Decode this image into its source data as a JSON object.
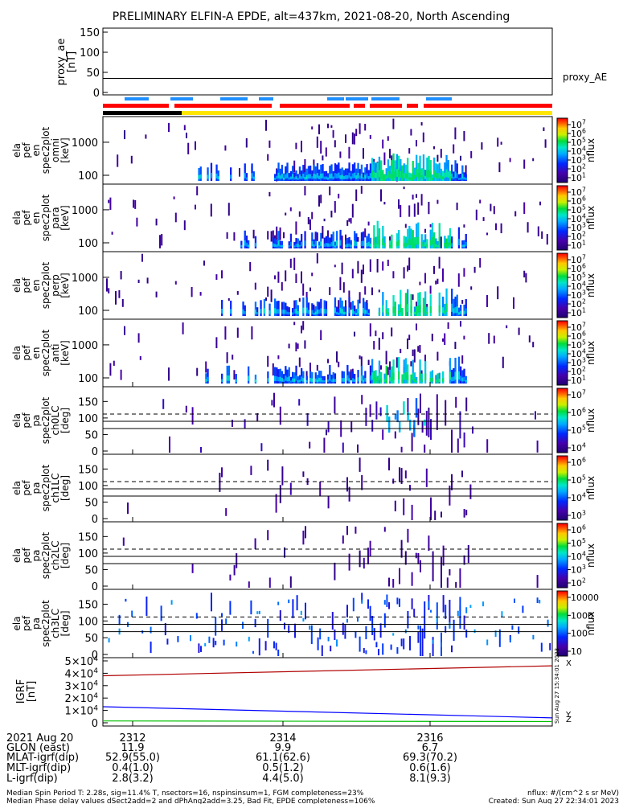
{
  "title": "PRELIMINARY ELFIN-A EPDE, alt=437km, 2021-08-20, North Ascending",
  "colors": {
    "red": "#ff0000",
    "yellow": "#ffe600",
    "black": "#000000",
    "blue_bar": "#1e90ff",
    "field_red": "#b00000",
    "field_blue": "#0000ff",
    "field_green": "#00c000"
  },
  "chart_data": [
    {
      "type": "line",
      "id": "proxy_ae",
      "ylabel": "proxy_ae [nT]",
      "yticks": [
        "150",
        "100",
        "50",
        "0"
      ],
      "ylim": [
        0,
        150
      ],
      "legend": "proxy_AE",
      "series": [
        {
          "name": "proxy_AE",
          "values": [
            35,
            35
          ]
        }
      ]
    },
    {
      "type": "heatmap",
      "id": "en_omni",
      "ylabel": "ela pef en spec2plot omni [keV]",
      "yticks": [
        "1000",
        "100"
      ],
      "scale": "log",
      "colorbar": {
        "label": "nflux",
        "ticks": [
          "10^7",
          "10^6",
          "10^5",
          "10^4",
          "10^3",
          "10^2",
          "10^1"
        ]
      }
    },
    {
      "type": "heatmap",
      "id": "en_para",
      "ylabel": "ela pef en spec2plot para [keV]",
      "yticks": [
        "1000",
        "100"
      ],
      "scale": "log",
      "colorbar": {
        "label": "nflux",
        "ticks": [
          "10^7",
          "10^6",
          "10^5",
          "10^4",
          "10^3",
          "10^2",
          "10^1"
        ]
      }
    },
    {
      "type": "heatmap",
      "id": "en_perp",
      "ylabel": "ela pef en spec2plot perp [keV]",
      "yticks": [
        "1000",
        "100"
      ],
      "scale": "log",
      "colorbar": {
        "label": "nflux",
        "ticks": [
          "10^7",
          "10^6",
          "10^5",
          "10^4",
          "10^3",
          "10^2",
          "10^1"
        ]
      }
    },
    {
      "type": "heatmap",
      "id": "en_anti",
      "ylabel": "ela pef en spec2plot anti [keV]",
      "yticks": [
        "1000",
        "100"
      ],
      "scale": "log",
      "colorbar": {
        "label": "nflux",
        "ticks": [
          "10^7",
          "10^6",
          "10^5",
          "10^4",
          "10^3",
          "10^2",
          "10^1"
        ]
      }
    },
    {
      "type": "heatmap",
      "id": "pa_ch0",
      "ylabel": "ela pef pa spec2plot ch0LC [deg]",
      "yticks": [
        "150",
        "100",
        "50",
        "0"
      ],
      "ylim": [
        0,
        180
      ],
      "colorbar": {
        "label": "nflux",
        "ticks": [
          "10^7",
          "10^6",
          "10^5",
          "10^4"
        ]
      }
    },
    {
      "type": "heatmap",
      "id": "pa_ch1",
      "ylabel": "ela pef pa spec2plot ch1LC [deg]",
      "yticks": [
        "150",
        "100",
        "50",
        "0"
      ],
      "ylim": [
        0,
        180
      ],
      "colorbar": {
        "label": "nflux",
        "ticks": [
          "10^6",
          "10^5",
          "10^4",
          "10^3"
        ]
      }
    },
    {
      "type": "heatmap",
      "id": "pa_ch2",
      "ylabel": "ela pef pa spec2plot ch2LC [deg]",
      "yticks": [
        "150",
        "100",
        "50",
        "0"
      ],
      "ylim": [
        0,
        180
      ],
      "colorbar": {
        "label": "nflux",
        "ticks": [
          "10^6",
          "10^5",
          "10^4",
          "10^3",
          "10^2"
        ]
      }
    },
    {
      "type": "heatmap",
      "id": "pa_ch3",
      "ylabel": "ela pef pa spec2plot ch3LC [deg]",
      "yticks": [
        "150",
        "100",
        "50",
        "0"
      ],
      "ylim": [
        0,
        180
      ],
      "colorbar": {
        "label": "nflux",
        "ticks": [
          "10000",
          "1000",
          "100",
          "10"
        ]
      }
    },
    {
      "type": "line",
      "id": "igrf",
      "ylabel": "IGRF [nT]",
      "yticks": [
        "5×10^4",
        "4×10^4",
        "3×10^4",
        "2×10^4",
        "1×10^4",
        "0"
      ],
      "ylim": [
        0,
        50000
      ],
      "series": [
        {
          "values": [
            38000,
            46000
          ]
        },
        {
          "values": [
            13000,
            4000
          ]
        },
        {
          "values": [
            1500,
            1000
          ]
        }
      ]
    }
  ],
  "side_labels": {
    "igrf_x": "X",
    "igrf_y": "Y",
    "igrf_z": "Z",
    "stamp": "Sun Aug 27 15:34:01 2023"
  },
  "footer": {
    "row_labels": [
      "2021 Aug 20",
      "GLON (east)",
      "MLAT-igrf(dip)",
      "MLT-igrf(dip)",
      "L-igrf(dip)"
    ],
    "columns": [
      {
        "time": "2312",
        "glon": "11.9",
        "mlat": "52.9(55.0)",
        "mlt": "0.4(1.0)",
        "l": "2.8(3.2)"
      },
      {
        "time": "2314",
        "glon": "9.9",
        "mlat": "61.1(62.6)",
        "mlt": "0.5(1.2)",
        "l": "4.4(5.0)"
      },
      {
        "time": "2316",
        "glon": "6.7",
        "mlat": "69.3(70.2)",
        "mlt": "0.6(1.6)",
        "l": "8.1(9.3)"
      }
    ],
    "note1": "Median Spin Period T: 2.28s, sig=11.4% T, nsectors=16, nspinsinsum=1, FGM completeness=23%",
    "note2": "Median Phase delay values dSect2add=2 and dPhAng2add=3.25, Bad Fit, EPDE completeness=106%",
    "units": "nflux: #/(cm^2 s sr MeV)",
    "created": "Created: Sun Aug 27 22:34:01 2023"
  }
}
